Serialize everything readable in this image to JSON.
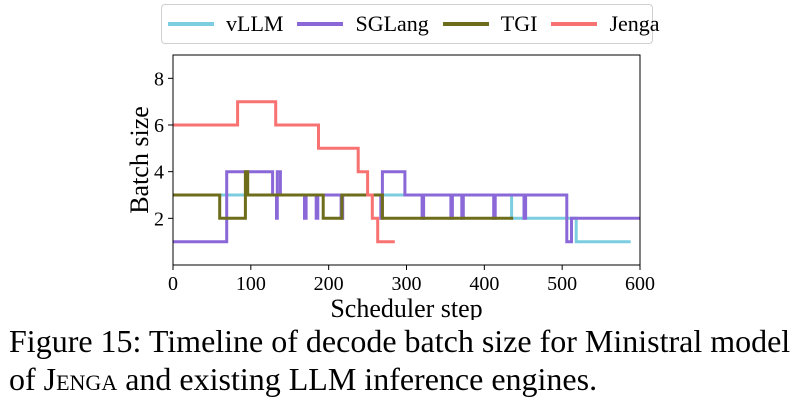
{
  "chart_data": {
    "type": "line",
    "title": "",
    "xlabel": "Scheduler step",
    "ylabel": "Batch size",
    "xlim": [
      0,
      600
    ],
    "ylim": [
      0,
      9
    ],
    "xticks": [
      0,
      100,
      200,
      300,
      400,
      500,
      600
    ],
    "yticks": [
      2,
      4,
      6,
      8
    ],
    "grid": false,
    "legend_position": "top-center-outside",
    "step": true,
    "series": [
      {
        "name": "vLLM",
        "color": "#7ccde0",
        "points": [
          [
            0,
            3
          ],
          [
            435,
            3
          ],
          [
            435,
            2
          ],
          [
            518,
            2
          ],
          [
            518,
            1
          ],
          [
            588,
            1
          ]
        ]
      },
      {
        "name": "SGLang",
        "color": "#8a68d8",
        "points": [
          [
            0,
            1
          ],
          [
            69,
            1
          ],
          [
            69,
            4
          ],
          [
            128,
            4
          ],
          [
            128,
            3
          ],
          [
            133,
            3
          ],
          [
            133,
            2
          ],
          [
            134,
            2
          ],
          [
            134,
            4
          ],
          [
            138,
            4
          ],
          [
            138,
            3
          ],
          [
            169,
            3
          ],
          [
            169,
            2
          ],
          [
            171,
            2
          ],
          [
            171,
            3
          ],
          [
            184,
            3
          ],
          [
            184,
            2
          ],
          [
            186,
            2
          ],
          [
            186,
            3
          ],
          [
            216,
            3
          ],
          [
            216,
            2
          ],
          [
            218,
            2
          ],
          [
            218,
            3
          ],
          [
            267,
            3
          ],
          [
            267,
            2
          ],
          [
            269,
            2
          ],
          [
            269,
            4
          ],
          [
            298,
            4
          ],
          [
            298,
            3
          ],
          [
            320,
            3
          ],
          [
            320,
            2
          ],
          [
            322,
            2
          ],
          [
            322,
            3
          ],
          [
            357,
            3
          ],
          [
            357,
            2
          ],
          [
            359,
            2
          ],
          [
            359,
            3
          ],
          [
            371,
            3
          ],
          [
            371,
            2
          ],
          [
            373,
            2
          ],
          [
            373,
            3
          ],
          [
            412,
            3
          ],
          [
            412,
            2
          ],
          [
            414,
            2
          ],
          [
            414,
            3
          ],
          [
            451,
            3
          ],
          [
            451,
            2
          ],
          [
            453,
            2
          ],
          [
            453,
            3
          ],
          [
            506,
            3
          ],
          [
            506,
            1
          ],
          [
            512,
            1
          ],
          [
            512,
            2
          ],
          [
            600,
            2
          ]
        ]
      },
      {
        "name": "TGI",
        "color": "#6e6d1c",
        "points": [
          [
            0,
            3
          ],
          [
            60,
            3
          ],
          [
            60,
            2
          ],
          [
            93,
            2
          ],
          [
            93,
            4
          ],
          [
            96,
            4
          ],
          [
            96,
            3
          ],
          [
            193,
            3
          ],
          [
            193,
            2
          ],
          [
            217,
            2
          ],
          [
            217,
            3
          ],
          [
            269,
            3
          ],
          [
            269,
            2
          ],
          [
            437,
            2
          ]
        ]
      },
      {
        "name": "Jenga",
        "color": "#f87272",
        "points": [
          [
            0,
            6
          ],
          [
            83,
            6
          ],
          [
            83,
            7
          ],
          [
            132,
            7
          ],
          [
            132,
            6
          ],
          [
            187,
            6
          ],
          [
            187,
            5
          ],
          [
            238,
            5
          ],
          [
            238,
            4
          ],
          [
            250,
            4
          ],
          [
            250,
            3
          ],
          [
            256,
            3
          ],
          [
            256,
            2
          ],
          [
            263,
            2
          ],
          [
            263,
            1
          ],
          [
            285,
            1
          ]
        ]
      }
    ]
  },
  "legend": {
    "items": [
      {
        "label": "vLLM",
        "color": "#7ccde0"
      },
      {
        "label": "SGLang",
        "color": "#8a68d8"
      },
      {
        "label": "TGI",
        "color": "#6e6d1c"
      },
      {
        "label": "Jenga",
        "color": "#f87272"
      }
    ]
  },
  "caption": {
    "prefix": "Figure 15: Timeline of decode batch size for Ministral model of ",
    "system_name": "Jenga",
    "suffix": " and existing LLM inference engines."
  }
}
